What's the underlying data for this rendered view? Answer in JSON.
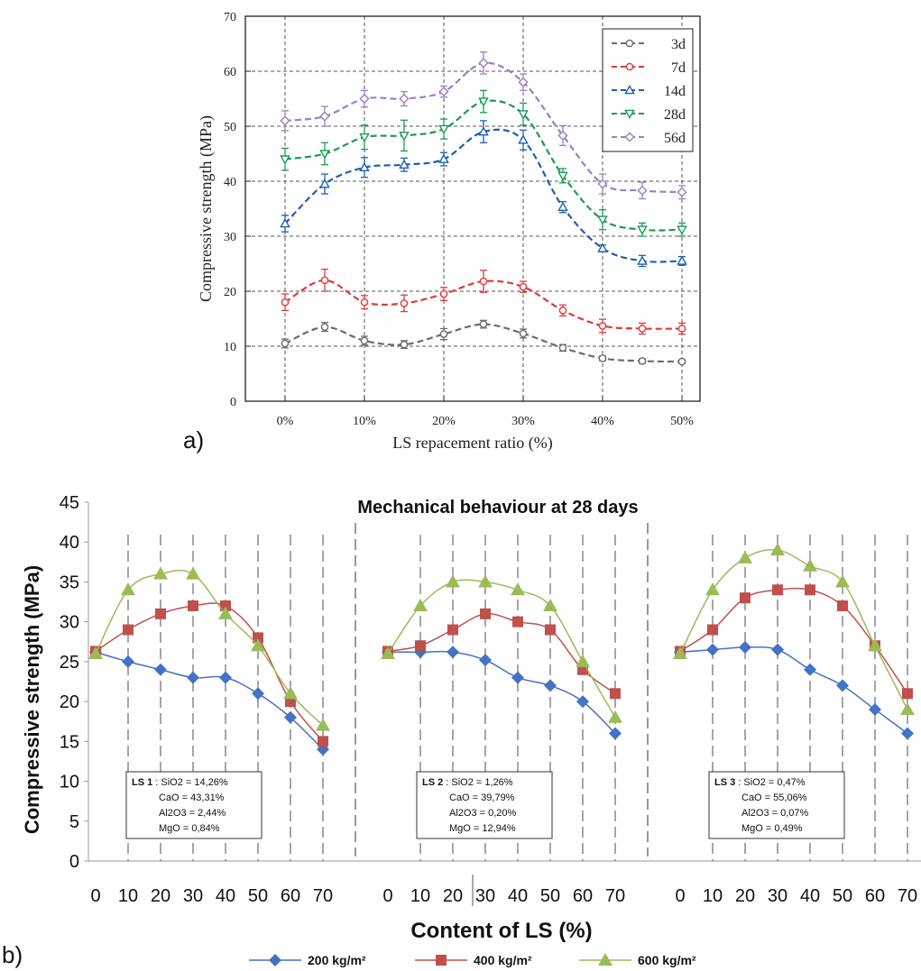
{
  "chart_data": [
    {
      "panel_label": "a)",
      "type": "line",
      "title": "",
      "xlabel": "LS repacement ratio (%)",
      "ylabel": "Compressive strength (MPa)",
      "categories": [
        "0%",
        "5%",
        "10%",
        "15%",
        "20%",
        "25%",
        "30%",
        "35%",
        "40%",
        "45%",
        "50%"
      ],
      "x_tick_labels": [
        "0%",
        "10%",
        "20%",
        "30%",
        "40%",
        "50%"
      ],
      "ylim": [
        0,
        70
      ],
      "y_ticks": [
        "0",
        "10",
        "20",
        "30",
        "40",
        "50",
        "60",
        "70"
      ],
      "grid": true,
      "legend_position": "top-right",
      "series": [
        {
          "name": "3d",
          "color": "#6b6b6b",
          "marker": "circle",
          "values": [
            10.5,
            13.5,
            11,
            10.3,
            12.2,
            14,
            12.3,
            9.7,
            7.8,
            7.3,
            7.2
          ],
          "errors": [
            0.8,
            0.8,
            0.8,
            0.7,
            1.0,
            0.7,
            0.8,
            0.6,
            0.4,
            0.4,
            0.3
          ]
        },
        {
          "name": "7d",
          "color": "#e03a3a",
          "marker": "circle",
          "values": [
            18,
            22,
            18,
            17.8,
            19.5,
            21.8,
            20.8,
            16.5,
            13.7,
            13.2,
            13.2
          ],
          "errors": [
            1.5,
            2.0,
            1.2,
            1.5,
            1.2,
            2.0,
            1.0,
            1.0,
            1.2,
            1.0,
            1.0
          ]
        },
        {
          "name": "14d",
          "color": "#1f5fb0",
          "marker": "triangle",
          "values": [
            32.3,
            39.5,
            42.5,
            43,
            44,
            49,
            47.5,
            35.3,
            27.8,
            25.5,
            25.5
          ],
          "errors": [
            1.5,
            1.8,
            1.8,
            1.2,
            1.2,
            2.0,
            1.8,
            1.0,
            0.6,
            1.0,
            0.8
          ]
        },
        {
          "name": "28d",
          "color": "#1b9a5a",
          "marker": "triangle-down",
          "values": [
            44,
            45,
            48,
            48.3,
            49.5,
            54.5,
            52.2,
            41,
            33,
            31.2,
            31.2
          ],
          "errors": [
            2.0,
            2.0,
            2.2,
            2.8,
            1.8,
            2.0,
            2.0,
            1.3,
            1.8,
            1.2,
            1.2
          ]
        },
        {
          "name": "56d",
          "color": "#9d7fc4",
          "marker": "diamond",
          "values": [
            51,
            51.8,
            55,
            55,
            56.3,
            61.5,
            58,
            48.3,
            39.5,
            38.3,
            38
          ],
          "errors": [
            1.8,
            1.8,
            1.5,
            1.3,
            1.0,
            2.0,
            1.5,
            1.8,
            1.8,
            1.5,
            1.2
          ]
        }
      ]
    },
    {
      "panel_label": "b)",
      "type": "line",
      "title": "Mechanical behaviour at 28 days",
      "xlabel": "Content of LS (%)",
      "ylabel": "Compressive strength (MPa)",
      "x": [
        0,
        10,
        20,
        30,
        40,
        50,
        60,
        70
      ],
      "x_tick_labels": [
        "0",
        "10",
        "20",
        "30",
        "40",
        "50",
        "60",
        "70"
      ],
      "ylim": [
        0,
        45
      ],
      "y_ticks": [
        "0",
        "5",
        "10",
        "15",
        "20",
        "25",
        "30",
        "35",
        "40",
        "45"
      ],
      "legend_position": "bottom",
      "legend": [
        {
          "name": "200 kg/m²",
          "color": "#4472c4",
          "marker": "diamond"
        },
        {
          "name": "400 kg/m²",
          "color": "#c0504d",
          "marker": "square"
        },
        {
          "name": "600 kg/m²",
          "color": "#9bbb59",
          "marker": "triangle"
        }
      ],
      "groups": [
        {
          "composition": {
            "name": "LS 1",
            "lines": [
              " : SiO2 = 14,26%",
              "CaO = 43,31%",
              "Al2O3 = 2,44%",
              "MgO = 0,84%"
            ]
          },
          "series": [
            {
              "name": "200 kg/m²",
              "values": [
                26.2,
                25,
                24,
                23,
                23,
                21,
                18,
                14
              ]
            },
            {
              "name": "400 kg/m²",
              "values": [
                26.3,
                29,
                31,
                32,
                32,
                28,
                20,
                15
              ]
            },
            {
              "name": "600 kg/m²",
              "values": [
                26,
                34,
                36,
                36,
                31,
                27,
                21,
                17
              ]
            }
          ]
        },
        {
          "composition": {
            "name": "LS 2",
            "lines": [
              " : SiO2 = 1,26%",
              "CaO = 39,79%",
              "Al2O3 = 0,20%",
              "MgO = 12,94%"
            ]
          },
          "series": [
            {
              "name": "200 kg/m²",
              "values": [
                26.2,
                26.2,
                26.2,
                25.2,
                23,
                22,
                20,
                16
              ]
            },
            {
              "name": "400 kg/m²",
              "values": [
                26.3,
                27,
                29,
                31,
                30,
                29,
                24,
                21
              ]
            },
            {
              "name": "600 kg/m²",
              "values": [
                26,
                32,
                35,
                35,
                34,
                32,
                25,
                18
              ]
            }
          ]
        },
        {
          "composition": {
            "name": "LS 3",
            "lines": [
              " : SiO2 = 0,47%",
              "CaO = 55,06%",
              "Al2O3 = 0,07%",
              "MgO = 0,49%"
            ]
          },
          "series": [
            {
              "name": "200 kg/m²",
              "values": [
                26.2,
                26.5,
                26.8,
                26.5,
                24,
                22,
                19,
                16
              ]
            },
            {
              "name": "400 kg/m²",
              "values": [
                26.3,
                29,
                33,
                34,
                34,
                32,
                27,
                21
              ]
            },
            {
              "name": "600 kg/m²",
              "values": [
                26,
                34,
                38,
                39,
                37,
                35,
                27,
                19
              ]
            }
          ]
        }
      ]
    }
  ]
}
